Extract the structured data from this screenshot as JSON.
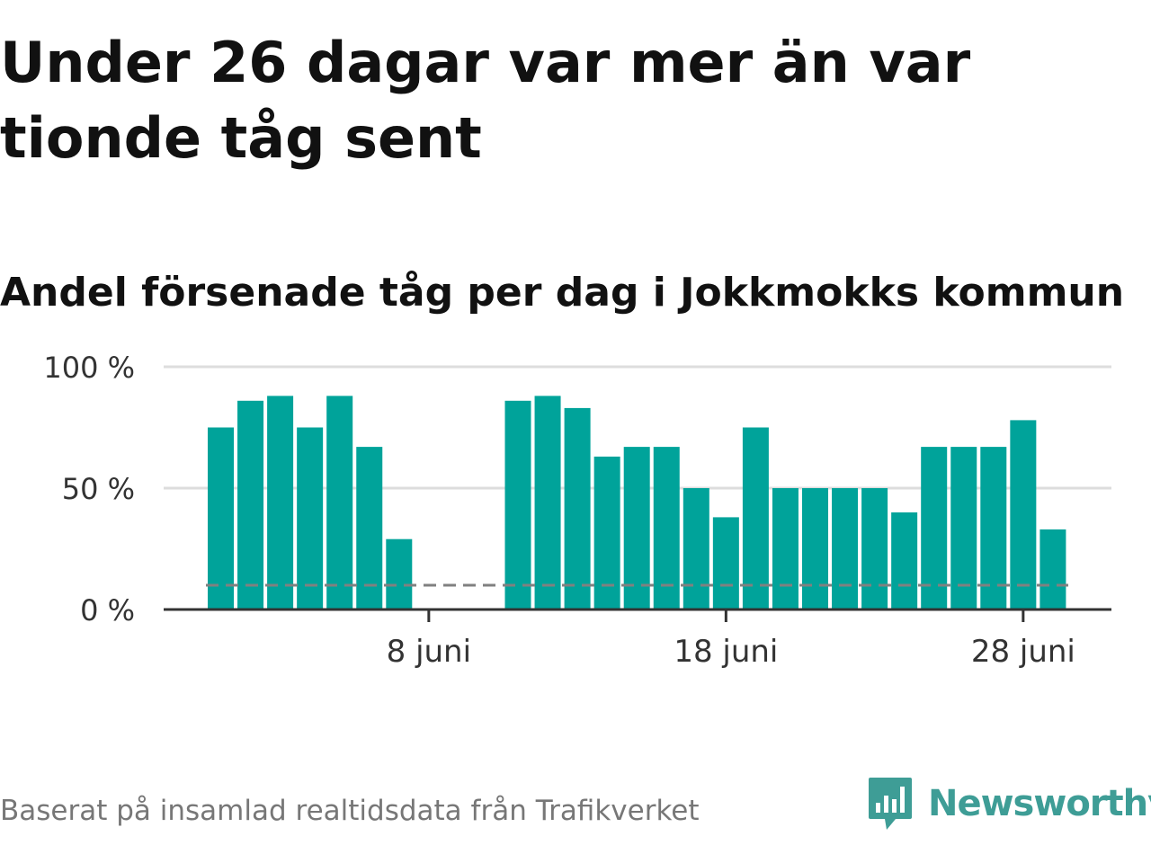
{
  "title": "Under 26 dagar var mer än var tionde tåg sent",
  "subtitle": "Andel försenade tåg per dag i Jokkmokks kommun",
  "source": "Baserat på insamlad realtidsdata från Trafikverket",
  "brand": {
    "name": "Newsworthy",
    "icon": "newsworthy-logo-icon",
    "color": "#3e9d96"
  },
  "colors": {
    "bar": "#00a39a",
    "threshold": "#808080",
    "grid": "#dddddd",
    "axis": "#333333"
  },
  "chart_data": {
    "type": "bar",
    "x": [
      "1 juni",
      "2 juni",
      "3 juni",
      "4 juni",
      "5 juni",
      "6 juni",
      "7 juni",
      "8 juni",
      "9 juni",
      "10 juni",
      "11 juni",
      "12 juni",
      "13 juni",
      "14 juni",
      "15 juni",
      "16 juni",
      "17 juni",
      "18 juni",
      "19 juni",
      "20 juni",
      "21 juni",
      "22 juni",
      "23 juni",
      "24 juni",
      "25 juni",
      "26 juni",
      "27 juni",
      "28 juni",
      "29 juni"
    ],
    "values": [
      75,
      86,
      88,
      75,
      88,
      67,
      29,
      null,
      null,
      null,
      86,
      88,
      83,
      63,
      67,
      67,
      50,
      38,
      75,
      50,
      50,
      50,
      50,
      40,
      67,
      67,
      67,
      78,
      33
    ],
    "threshold": 10,
    "ylim": [
      0,
      100
    ],
    "yticks": [
      {
        "value": 0,
        "label": "0 %"
      },
      {
        "value": 50,
        "label": "50 %"
      },
      {
        "value": 100,
        "label": "100 %"
      }
    ],
    "xticks": [
      {
        "index": 7,
        "label": "8 juni"
      },
      {
        "index": 17,
        "label": "18 juni"
      },
      {
        "index": 27,
        "label": "28 juni"
      }
    ],
    "grid": true
  }
}
